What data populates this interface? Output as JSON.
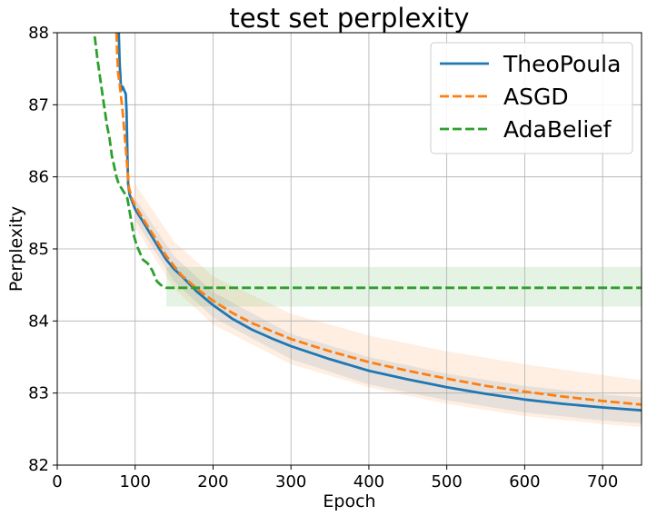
{
  "chart_data": {
    "type": "line",
    "title": "test set perplexity",
    "xlabel": "Epoch",
    "ylabel": "Perplexity",
    "xlim": [
      0,
      750
    ],
    "ylim": [
      82,
      88
    ],
    "xticks": [
      0,
      100,
      200,
      300,
      400,
      500,
      600,
      700
    ],
    "yticks": [
      82,
      83,
      84,
      85,
      86,
      87,
      88
    ],
    "grid": true,
    "legend_position": "top-right",
    "series": [
      {
        "name": "TheoPoula",
        "color": "#1f77b4",
        "linestyle": "solid",
        "points": [
          [
            79,
            88.0
          ],
          [
            80,
            87.6
          ],
          [
            82,
            87.2
          ],
          [
            84,
            87.25
          ],
          [
            86,
            87.2
          ],
          [
            88,
            87.15
          ],
          [
            89,
            86.9
          ],
          [
            90,
            86.3
          ],
          [
            91,
            85.9
          ],
          [
            93,
            85.75
          ],
          [
            100,
            85.55
          ],
          [
            110,
            85.38
          ],
          [
            120,
            85.2
          ],
          [
            130,
            85.02
          ],
          [
            140,
            84.85
          ],
          [
            150,
            84.72
          ],
          [
            160,
            84.62
          ],
          [
            180,
            84.4
          ],
          [
            200,
            84.22
          ],
          [
            225,
            84.03
          ],
          [
            250,
            83.88
          ],
          [
            275,
            83.76
          ],
          [
            300,
            83.65
          ],
          [
            350,
            83.47
          ],
          [
            400,
            83.31
          ],
          [
            450,
            83.19
          ],
          [
            500,
            83.08
          ],
          [
            550,
            82.99
          ],
          [
            600,
            82.91
          ],
          [
            650,
            82.85
          ],
          [
            700,
            82.8
          ],
          [
            750,
            82.76
          ]
        ],
        "band": [
          [
            100,
            85.4,
            85.7
          ],
          [
            150,
            84.55,
            84.9
          ],
          [
            200,
            84.05,
            84.4
          ],
          [
            300,
            83.47,
            83.82
          ],
          [
            400,
            83.12,
            83.5
          ],
          [
            500,
            82.9,
            83.27
          ],
          [
            600,
            82.73,
            83.1
          ],
          [
            700,
            82.62,
            82.98
          ],
          [
            750,
            82.58,
            82.94
          ]
        ]
      },
      {
        "name": "ASGD",
        "color": "#ff7f0e",
        "linestyle": "dashed",
        "points": [
          [
            76,
            88.0
          ],
          [
            77,
            87.7
          ],
          [
            78,
            87.45
          ],
          [
            80,
            87.3
          ],
          [
            84,
            86.9
          ],
          [
            88,
            86.4
          ],
          [
            92,
            85.85
          ],
          [
            96,
            85.7
          ],
          [
            100,
            85.6
          ],
          [
            110,
            85.42
          ],
          [
            120,
            85.25
          ],
          [
            130,
            85.07
          ],
          [
            140,
            84.9
          ],
          [
            150,
            84.76
          ],
          [
            160,
            84.63
          ],
          [
            180,
            84.44
          ],
          [
            200,
            84.28
          ],
          [
            225,
            84.11
          ],
          [
            250,
            83.97
          ],
          [
            275,
            83.86
          ],
          [
            300,
            83.75
          ],
          [
            350,
            83.58
          ],
          [
            400,
            83.43
          ],
          [
            450,
            83.31
          ],
          [
            500,
            83.2
          ],
          [
            550,
            83.1
          ],
          [
            600,
            83.02
          ],
          [
            650,
            82.95
          ],
          [
            700,
            82.89
          ],
          [
            750,
            82.84
          ]
        ],
        "band": [
          [
            100,
            85.3,
            85.9
          ],
          [
            150,
            84.45,
            85.1
          ],
          [
            200,
            83.95,
            84.62
          ],
          [
            300,
            83.4,
            84.1
          ],
          [
            400,
            83.08,
            83.8
          ],
          [
            500,
            82.85,
            83.58
          ],
          [
            600,
            82.68,
            83.4
          ],
          [
            700,
            82.57,
            83.25
          ],
          [
            750,
            82.53,
            83.18
          ]
        ]
      },
      {
        "name": "AdaBelief",
        "color": "#2ca02c",
        "linestyle": "dashed",
        "points": [
          [
            48,
            87.95
          ],
          [
            52,
            87.6
          ],
          [
            56,
            87.3
          ],
          [
            60,
            87.0
          ],
          [
            64,
            86.7
          ],
          [
            67,
            86.55
          ],
          [
            70,
            86.3
          ],
          [
            73,
            86.15
          ],
          [
            76,
            86.0
          ],
          [
            79,
            85.9
          ],
          [
            82,
            85.85
          ],
          [
            86,
            85.78
          ],
          [
            90,
            85.7
          ],
          [
            94,
            85.45
          ],
          [
            98,
            85.2
          ],
          [
            102,
            85.05
          ],
          [
            106,
            84.95
          ],
          [
            110,
            84.85
          ],
          [
            116,
            84.8
          ],
          [
            122,
            84.7
          ],
          [
            128,
            84.55
          ],
          [
            133,
            84.5
          ],
          [
            140,
            84.46
          ],
          [
            150,
            84.46
          ],
          [
            750,
            84.46
          ]
        ],
        "band": [
          [
            140,
            84.2,
            84.75
          ],
          [
            750,
            84.2,
            84.75
          ]
        ]
      }
    ]
  }
}
